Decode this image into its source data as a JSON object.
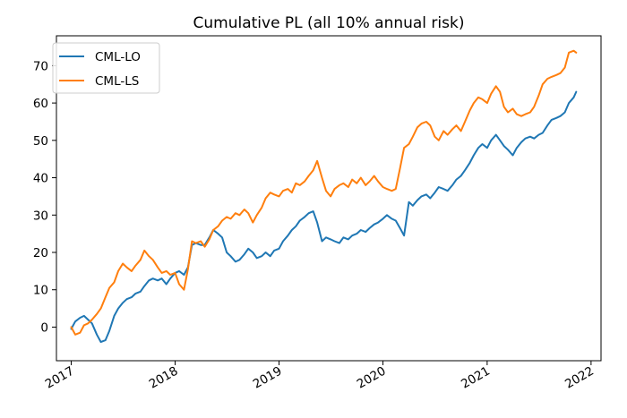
{
  "chart_data": {
    "type": "line",
    "title": "Cumulative PL (all 10% annual risk)",
    "xlabel": "",
    "ylabel": "",
    "x_axis": "date",
    "xlim": [
      "2016-11-10",
      "2022-02-05"
    ],
    "ylim": [
      -9,
      78
    ],
    "x_ticks": [
      "2017",
      "2018",
      "2019",
      "2020",
      "2021",
      "2022"
    ],
    "x_tick_dates": [
      "2017-01-01",
      "2018-01-01",
      "2019-01-01",
      "2020-01-01",
      "2021-01-01",
      "2022-01-01"
    ],
    "y_ticks": [
      0,
      10,
      20,
      30,
      40,
      50,
      60,
      70
    ],
    "grid": false,
    "legend_position": "upper-left",
    "series": [
      {
        "name": "CML-LO",
        "color": "#1f77b4",
        "points": [
          [
            "2017-01-01",
            -0.5
          ],
          [
            "2017-01-15",
            1.5
          ],
          [
            "2017-02-01",
            2.5
          ],
          [
            "2017-02-15",
            3.0
          ],
          [
            "2017-03-01",
            2.0
          ],
          [
            "2017-03-15",
            1.0
          ],
          [
            "2017-04-01",
            -2.0
          ],
          [
            "2017-04-15",
            -4.0
          ],
          [
            "2017-05-01",
            -3.5
          ],
          [
            "2017-05-15",
            -1.0
          ],
          [
            "2017-06-01",
            3.0
          ],
          [
            "2017-06-15",
            5.0
          ],
          [
            "2017-07-01",
            6.5
          ],
          [
            "2017-07-15",
            7.5
          ],
          [
            "2017-08-01",
            8.0
          ],
          [
            "2017-08-15",
            9.0
          ],
          [
            "2017-09-01",
            9.5
          ],
          [
            "2017-09-15",
            11.0
          ],
          [
            "2017-10-01",
            12.5
          ],
          [
            "2017-10-15",
            13.0
          ],
          [
            "2017-11-01",
            12.5
          ],
          [
            "2017-11-15",
            13.0
          ],
          [
            "2017-12-01",
            11.5
          ],
          [
            "2017-12-15",
            13.0
          ],
          [
            "2018-01-01",
            14.5
          ],
          [
            "2018-01-15",
            15.0
          ],
          [
            "2018-02-01",
            14.0
          ],
          [
            "2018-02-15",
            16.0
          ],
          [
            "2018-03-01",
            22.0
          ],
          [
            "2018-03-15",
            22.5
          ],
          [
            "2018-04-01",
            22.0
          ],
          [
            "2018-04-15",
            22.0
          ],
          [
            "2018-05-01",
            24.0
          ],
          [
            "2018-05-15",
            26.0
          ],
          [
            "2018-06-01",
            25.0
          ],
          [
            "2018-06-15",
            24.0
          ],
          [
            "2018-07-01",
            20.0
          ],
          [
            "2018-07-15",
            19.0
          ],
          [
            "2018-08-01",
            17.5
          ],
          [
            "2018-08-15",
            18.0
          ],
          [
            "2018-09-01",
            19.5
          ],
          [
            "2018-09-15",
            21.0
          ],
          [
            "2018-10-01",
            20.0
          ],
          [
            "2018-10-15",
            18.5
          ],
          [
            "2018-11-01",
            19.0
          ],
          [
            "2018-11-15",
            20.0
          ],
          [
            "2018-12-01",
            19.0
          ],
          [
            "2018-12-15",
            20.5
          ],
          [
            "2019-01-01",
            21.0
          ],
          [
            "2019-01-15",
            23.0
          ],
          [
            "2019-02-01",
            24.5
          ],
          [
            "2019-02-15",
            26.0
          ],
          [
            "2019-03-01",
            27.0
          ],
          [
            "2019-03-15",
            28.5
          ],
          [
            "2019-04-01",
            29.5
          ],
          [
            "2019-04-15",
            30.5
          ],
          [
            "2019-05-01",
            31.0
          ],
          [
            "2019-05-15",
            28.0
          ],
          [
            "2019-06-01",
            23.0
          ],
          [
            "2019-06-15",
            24.0
          ],
          [
            "2019-07-01",
            23.5
          ],
          [
            "2019-07-15",
            23.0
          ],
          [
            "2019-08-01",
            22.5
          ],
          [
            "2019-08-15",
            24.0
          ],
          [
            "2019-09-01",
            23.5
          ],
          [
            "2019-09-15",
            24.5
          ],
          [
            "2019-10-01",
            25.0
          ],
          [
            "2019-10-15",
            26.0
          ],
          [
            "2019-11-01",
            25.5
          ],
          [
            "2019-11-15",
            26.5
          ],
          [
            "2019-12-01",
            27.5
          ],
          [
            "2019-12-15",
            28.0
          ],
          [
            "2020-01-01",
            29.0
          ],
          [
            "2020-01-15",
            30.0
          ],
          [
            "2020-02-01",
            29.0
          ],
          [
            "2020-02-15",
            28.5
          ],
          [
            "2020-03-01",
            26.5
          ],
          [
            "2020-03-15",
            24.5
          ],
          [
            "2020-04-01",
            33.5
          ],
          [
            "2020-04-15",
            32.5
          ],
          [
            "2020-05-01",
            34.0
          ],
          [
            "2020-05-15",
            35.0
          ],
          [
            "2020-06-01",
            35.5
          ],
          [
            "2020-06-15",
            34.5
          ],
          [
            "2020-07-01",
            36.0
          ],
          [
            "2020-07-15",
            37.5
          ],
          [
            "2020-08-01",
            37.0
          ],
          [
            "2020-08-15",
            36.5
          ],
          [
            "2020-09-01",
            38.0
          ],
          [
            "2020-09-15",
            39.5
          ],
          [
            "2020-10-01",
            40.5
          ],
          [
            "2020-10-15",
            42.0
          ],
          [
            "2020-11-01",
            44.0
          ],
          [
            "2020-11-15",
            46.0
          ],
          [
            "2020-12-01",
            48.0
          ],
          [
            "2020-12-15",
            49.0
          ],
          [
            "2021-01-01",
            48.0
          ],
          [
            "2021-01-15",
            50.0
          ],
          [
            "2021-02-01",
            51.5
          ],
          [
            "2021-02-15",
            50.0
          ],
          [
            "2021-03-01",
            48.5
          ],
          [
            "2021-03-15",
            47.5
          ],
          [
            "2021-04-01",
            46.0
          ],
          [
            "2021-04-15",
            48.0
          ],
          [
            "2021-05-01",
            49.5
          ],
          [
            "2021-05-15",
            50.5
          ],
          [
            "2021-06-01",
            51.0
          ],
          [
            "2021-06-15",
            50.5
          ],
          [
            "2021-07-01",
            51.5
          ],
          [
            "2021-07-15",
            52.0
          ],
          [
            "2021-08-01",
            54.0
          ],
          [
            "2021-08-15",
            55.5
          ],
          [
            "2021-09-01",
            56.0
          ],
          [
            "2021-09-15",
            56.5
          ],
          [
            "2021-10-01",
            57.5
          ],
          [
            "2021-10-15",
            60.0
          ],
          [
            "2021-11-01",
            61.5
          ],
          [
            "2021-11-10",
            63.0
          ]
        ]
      },
      {
        "name": "CML-LS",
        "color": "#ff7f0e",
        "points": [
          [
            "2017-01-01",
            0.0
          ],
          [
            "2017-01-15",
            -2.0
          ],
          [
            "2017-02-01",
            -1.5
          ],
          [
            "2017-02-15",
            0.5
          ],
          [
            "2017-03-01",
            1.0
          ],
          [
            "2017-03-15",
            2.0
          ],
          [
            "2017-04-01",
            3.5
          ],
          [
            "2017-04-15",
            5.0
          ],
          [
            "2017-05-01",
            8.0
          ],
          [
            "2017-05-15",
            10.5
          ],
          [
            "2017-06-01",
            12.0
          ],
          [
            "2017-06-15",
            15.0
          ],
          [
            "2017-07-01",
            17.0
          ],
          [
            "2017-07-15",
            16.0
          ],
          [
            "2017-08-01",
            15.0
          ],
          [
            "2017-08-15",
            16.5
          ],
          [
            "2017-09-01",
            18.0
          ],
          [
            "2017-09-15",
            20.5
          ],
          [
            "2017-10-01",
            19.0
          ],
          [
            "2017-10-15",
            18.0
          ],
          [
            "2017-11-01",
            16.0
          ],
          [
            "2017-11-15",
            14.5
          ],
          [
            "2017-12-01",
            15.0
          ],
          [
            "2017-12-15",
            14.0
          ],
          [
            "2018-01-01",
            14.5
          ],
          [
            "2018-01-15",
            11.5
          ],
          [
            "2018-02-01",
            10.0
          ],
          [
            "2018-02-15",
            15.5
          ],
          [
            "2018-03-01",
            23.0
          ],
          [
            "2018-03-15",
            22.5
          ],
          [
            "2018-04-01",
            23.0
          ],
          [
            "2018-04-15",
            21.5
          ],
          [
            "2018-05-01",
            23.5
          ],
          [
            "2018-05-15",
            26.0
          ],
          [
            "2018-06-01",
            27.0
          ],
          [
            "2018-06-15",
            28.5
          ],
          [
            "2018-07-01",
            29.5
          ],
          [
            "2018-07-15",
            29.0
          ],
          [
            "2018-08-01",
            30.5
          ],
          [
            "2018-08-15",
            30.0
          ],
          [
            "2018-09-01",
            31.5
          ],
          [
            "2018-09-15",
            30.5
          ],
          [
            "2018-10-01",
            28.0
          ],
          [
            "2018-10-15",
            30.0
          ],
          [
            "2018-11-01",
            32.0
          ],
          [
            "2018-11-15",
            34.5
          ],
          [
            "2018-12-01",
            36.0
          ],
          [
            "2018-12-15",
            35.5
          ],
          [
            "2019-01-01",
            35.0
          ],
          [
            "2019-01-15",
            36.5
          ],
          [
            "2019-02-01",
            37.0
          ],
          [
            "2019-02-15",
            36.0
          ],
          [
            "2019-03-01",
            38.5
          ],
          [
            "2019-03-15",
            38.0
          ],
          [
            "2019-04-01",
            39.0
          ],
          [
            "2019-04-15",
            40.5
          ],
          [
            "2019-05-01",
            42.0
          ],
          [
            "2019-05-15",
            44.5
          ],
          [
            "2019-06-01",
            40.0
          ],
          [
            "2019-06-15",
            36.5
          ],
          [
            "2019-07-01",
            35.0
          ],
          [
            "2019-07-15",
            37.0
          ],
          [
            "2019-08-01",
            38.0
          ],
          [
            "2019-08-15",
            38.5
          ],
          [
            "2019-09-01",
            37.5
          ],
          [
            "2019-09-15",
            39.5
          ],
          [
            "2019-10-01",
            38.5
          ],
          [
            "2019-10-15",
            40.0
          ],
          [
            "2019-11-01",
            38.0
          ],
          [
            "2019-11-15",
            39.0
          ],
          [
            "2019-12-01",
            40.5
          ],
          [
            "2019-12-15",
            39.0
          ],
          [
            "2020-01-01",
            37.5
          ],
          [
            "2020-01-15",
            37.0
          ],
          [
            "2020-02-01",
            36.5
          ],
          [
            "2020-02-15",
            37.0
          ],
          [
            "2020-03-01",
            42.5
          ],
          [
            "2020-03-15",
            48.0
          ],
          [
            "2020-04-01",
            49.0
          ],
          [
            "2020-04-15",
            51.0
          ],
          [
            "2020-05-01",
            53.5
          ],
          [
            "2020-05-15",
            54.5
          ],
          [
            "2020-06-01",
            55.0
          ],
          [
            "2020-06-15",
            54.0
          ],
          [
            "2020-07-01",
            51.0
          ],
          [
            "2020-07-15",
            50.0
          ],
          [
            "2020-08-01",
            52.5
          ],
          [
            "2020-08-15",
            51.5
          ],
          [
            "2020-09-01",
            53.0
          ],
          [
            "2020-09-15",
            54.0
          ],
          [
            "2020-10-01",
            52.5
          ],
          [
            "2020-10-15",
            55.0
          ],
          [
            "2020-11-01",
            58.0
          ],
          [
            "2020-11-15",
            60.0
          ],
          [
            "2020-12-01",
            61.5
          ],
          [
            "2020-12-15",
            61.0
          ],
          [
            "2021-01-01",
            60.0
          ],
          [
            "2021-01-15",
            62.5
          ],
          [
            "2021-02-01",
            64.5
          ],
          [
            "2021-02-15",
            63.0
          ],
          [
            "2021-03-01",
            59.0
          ],
          [
            "2021-03-15",
            57.5
          ],
          [
            "2021-04-01",
            58.5
          ],
          [
            "2021-04-15",
            57.0
          ],
          [
            "2021-05-01",
            56.5
          ],
          [
            "2021-05-15",
            57.0
          ],
          [
            "2021-06-01",
            57.5
          ],
          [
            "2021-06-15",
            59.0
          ],
          [
            "2021-07-01",
            62.0
          ],
          [
            "2021-07-15",
            65.0
          ],
          [
            "2021-08-01",
            66.5
          ],
          [
            "2021-08-15",
            67.0
          ],
          [
            "2021-09-01",
            67.5
          ],
          [
            "2021-09-15",
            68.0
          ],
          [
            "2021-10-01",
            69.5
          ],
          [
            "2021-10-15",
            73.5
          ],
          [
            "2021-11-01",
            74.0
          ],
          [
            "2021-11-10",
            73.5
          ]
        ]
      }
    ]
  }
}
